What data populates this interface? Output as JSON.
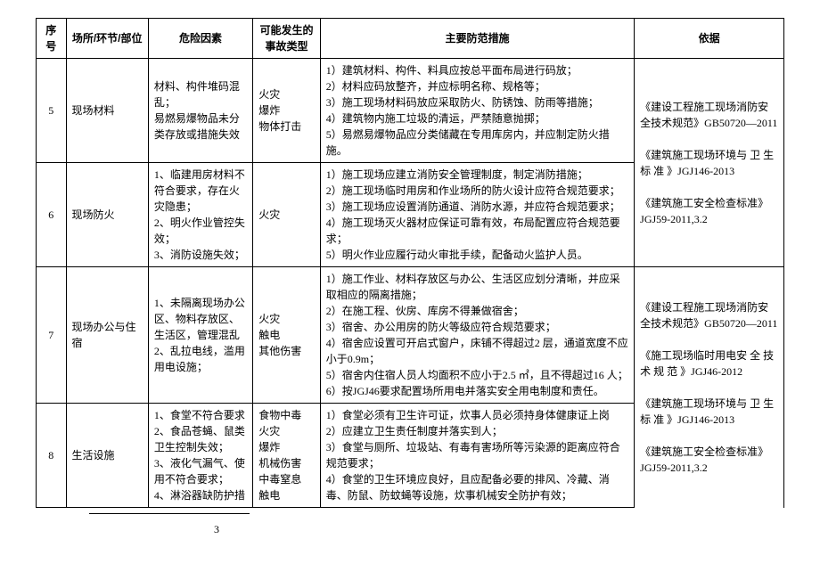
{
  "headers": {
    "seq": "序号",
    "loc": "场所/环节/部位",
    "risk": "危险因素",
    "acc": "可能发生的事故类型",
    "measure": "主要防范措施",
    "basis": "依据"
  },
  "rows": [
    {
      "seq": "5",
      "loc": "现场材料",
      "risk": "材料、构件堆码混乱；\n易燃易爆物品未分类存放或措施失效",
      "acc": "火灾\n爆炸\n物体打击",
      "measure": "1）建筑材料、构件、料具应按总平面布局进行码放；\n2）材料应码放整齐，并应标明名称、规格等；\n3）施工现场材料码放应采取防火、防锈蚀、防雨等措施；\n4）建筑物内施工垃圾的清运，严禁随意抛掷；\n5）易燃易爆物品应分类储藏在专用库房内，并应制定防火措施。",
      "basis": "《建设工程施工现场消防安全技术规范》GB50720—2011\n\n《建筑施工现场环境与 卫 生 标 准 》JGJ146-2013\n\n《建筑施工安全检查标准》JGJ59-2011,3.2"
    },
    {
      "seq": "6",
      "loc": "现场防火",
      "risk": "1、临建用房材料不符合要求，存在火灾隐患；\n2、明火作业管控失效；\n3、消防设施失效；",
      "acc": "火灾",
      "measure": "1）施工现场应建立消防安全管理制度，制定消防措施；\n2）施工现场临时用房和作业场所的防火设计应符合规范要求；\n3）施工现场应设置消防通道、消防水源，并应符合规范要求；\n4）施工现场灭火器材应保证可靠有效，布局配置应符合规范要求；\n5）明火作业应履行动火审批手续，配备动火监护人员。",
      "basis": ""
    },
    {
      "seq": "7",
      "loc": "现场办公与住宿",
      "risk": "1、未隔离现场办公区、物料存放区、生活区，管理混乱\n2、乱拉电线，滥用用电设施；",
      "acc": "火灾\n触电\n其他伤害",
      "measure": "1）施工作业、材料存放区与办公、生活区应划分清晰，并应采取相应的隔离措施；\n2）在施工程、伙房、库房不得兼做宿舍；\n3）宿舍、办公用房的防火等级应符合规范要求；\n4）宿舍应设置可开启式窗户，床铺不得超过2 层，通道宽度不应小于0.9m；\n5）宿舍内住宿人员人均面积不应小于2.5 ㎡，且不得超过16 人；\n6）按JGJ46要求配置场所用电并落实安全用电制度和责任。",
      "basis": "《建设工程施工现场消防安全技术规范》GB50720—2011\n\n《施工现场临时用电安 全 技 术 规 范 》JGJ46-2012\n\n《建筑施工现场环境与 卫 生 标 准 》JGJ146-2013\n\n《建筑施工安全检查标准》JGJ59-2011,3.2"
    },
    {
      "seq": "8",
      "loc": "生活设施",
      "risk": "1、食堂不符合要求\n2、食品苍蝇、鼠类卫生控制失效；\n3、液化气漏气、使用不符合要求；\n4、淋浴器缺防护措",
      "acc": "食物中毒\n火灾\n爆炸\n机械伤害\n中毒窒息\n触电",
      "measure": "1）食堂必须有卫生许可证，炊事人员必须持身体健康证上岗\n2）应建立卫生责任制度并落实到人；\n3）食堂与厕所、垃圾站、有毒有害场所等污染源的距离应符合规范要求；\n4）食堂的卫生环境应良好，且应配备必要的排风、冷藏、消毒、防鼠、防蚊蝇等设施，炊事机械安全防护有效；",
      "basis": ""
    }
  ],
  "page_number": "3"
}
